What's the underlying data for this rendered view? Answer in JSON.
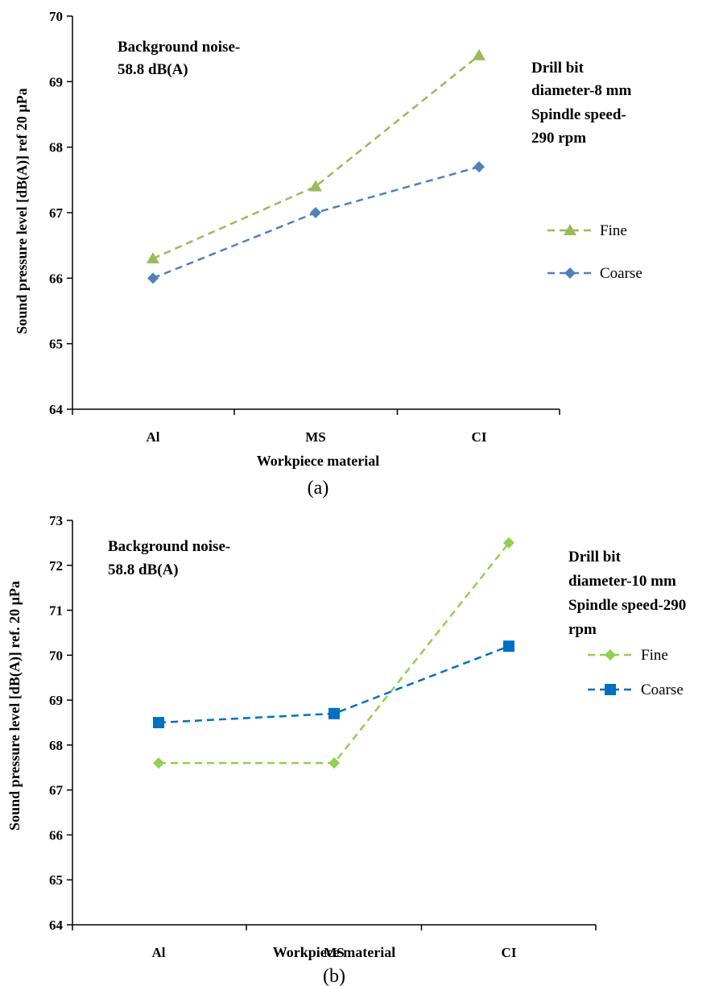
{
  "chart_data": [
    {
      "type": "line",
      "panel_label": "(a)",
      "categories": [
        "Al",
        "MS",
        "CI"
      ],
      "series": [
        {
          "name": "Fine",
          "values": [
            66.3,
            67.4,
            69.4
          ],
          "color": "#9BBB59",
          "marker": "triangle"
        },
        {
          "name": "Coarse",
          "values": [
            66.0,
            67.0,
            67.7
          ],
          "color": "#4F81BD",
          "marker": "diamond"
        }
      ],
      "xlabel": "Workpiece material",
      "ylabel": "Sound pressure level [dB(A)] ref 20 µPa",
      "ylim": [
        64,
        70
      ],
      "yticks": [
        64,
        65,
        66,
        67,
        68,
        69,
        70
      ],
      "grid": false,
      "legend_position": "right",
      "annotations": {
        "left": [
          "Background noise-",
          "58.8 dB(A)"
        ],
        "right": [
          "Drill bit",
          "diameter-8 mm",
          "Spindle speed-",
          "290 rpm"
        ]
      }
    },
    {
      "type": "line",
      "panel_label": "(b)",
      "categories": [
        "Al",
        "MS",
        "CI"
      ],
      "series": [
        {
          "name": "Fine",
          "values": [
            67.6,
            67.6,
            72.5
          ],
          "color": "#92D050",
          "marker": "diamond"
        },
        {
          "name": "Coarse",
          "values": [
            68.5,
            68.7,
            70.2
          ],
          "color": "#0070C0",
          "marker": "square"
        }
      ],
      "xlabel": "Workpiece material",
      "ylabel": "Sound pressure level [dB(A)] ref. 20 µPa",
      "ylim": [
        64,
        73
      ],
      "yticks": [
        64,
        65,
        66,
        67,
        68,
        69,
        70,
        71,
        72,
        73
      ],
      "grid": false,
      "legend_position": "right",
      "annotations": {
        "left": [
          "Background noise-",
          "58.8 dB(A)"
        ],
        "right": [
          "Drill bit",
          "diameter-10 mm",
          "Spindle speed-290",
          "rpm"
        ]
      }
    }
  ]
}
